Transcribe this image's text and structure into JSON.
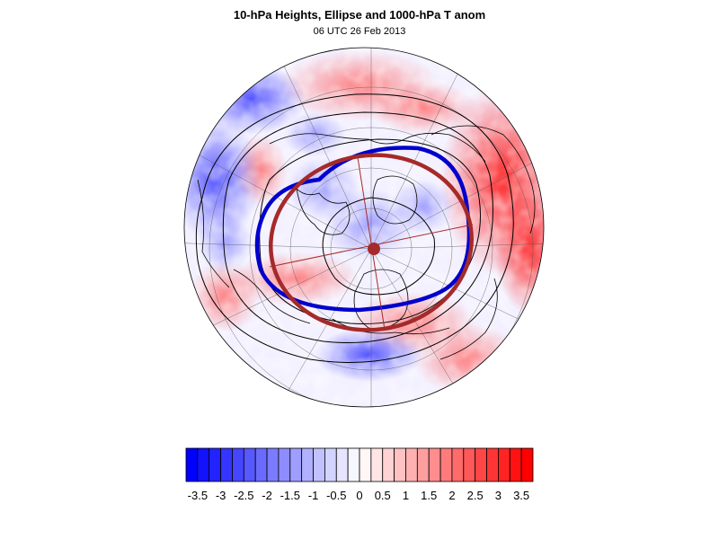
{
  "title": "10-hPa Heights, Ellipse and 1000-hPa T anom",
  "subtitle": "06 UTC 26 Feb 2013",
  "colors": {
    "cold": "#0000ff",
    "warm": "#ff0000",
    "height_contour": "#000000",
    "ellipse": "#a52a2a",
    "vortex_edge": "#0000cd",
    "coastline": "#000000"
  },
  "colorbar": {
    "labels": [
      "-3.5",
      "-3",
      "-2.5",
      "-2",
      "-1.5",
      "-1",
      "-0.5",
      "0",
      "0.5",
      "1",
      "1.5",
      "2",
      "2.5",
      "3",
      "3.5"
    ],
    "min": -3.75,
    "max": 3.75,
    "step": 0.25
  },
  "map": {
    "projection": "orthographic north polar",
    "field": "1000-hPa T anom",
    "overlays": [
      "10-hPa Heights",
      "Ellipse",
      "vortex edge",
      "coastlines",
      "graticule"
    ]
  }
}
